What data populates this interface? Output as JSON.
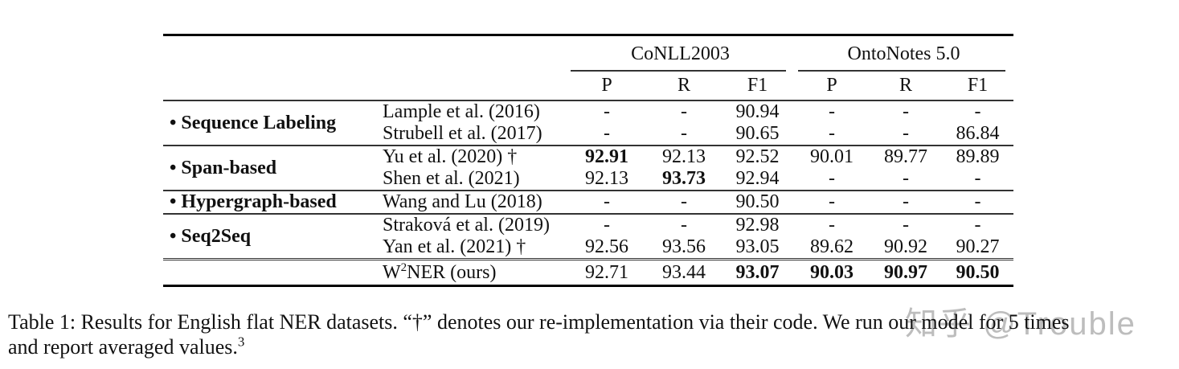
{
  "table": {
    "bullet": "•",
    "col_groups": [
      {
        "label": "CoNLL2003"
      },
      {
        "label": "OntoNotes 5.0"
      }
    ],
    "metric_headers": [
      "P",
      "R",
      "F1"
    ],
    "groups": [
      {
        "category": "Sequence Labeling",
        "rows": [
          {
            "method": "Lample et al. (2016)",
            "values": [
              "-",
              "-",
              "90.94",
              "-",
              "-",
              "-"
            ],
            "bold": []
          },
          {
            "method": "Strubell et al. (2017)",
            "values": [
              "-",
              "-",
              "90.65",
              "-",
              "-",
              "86.84"
            ],
            "bold": []
          }
        ]
      },
      {
        "category": "Span-based",
        "rows": [
          {
            "method": "Yu et al. (2020) †",
            "values": [
              "92.91",
              "92.13",
              "92.52",
              "90.01",
              "89.77",
              "89.89"
            ],
            "bold": [
              0
            ]
          },
          {
            "method": "Shen et al. (2021)",
            "values": [
              "92.13",
              "93.73",
              "92.94",
              "-",
              "-",
              "-"
            ],
            "bold": [
              1
            ]
          }
        ]
      },
      {
        "category": "Hypergraph-based",
        "rows": [
          {
            "method": "Wang and Lu (2018)",
            "values": [
              "-",
              "-",
              "90.50",
              "-",
              "-",
              "-"
            ],
            "bold": []
          }
        ]
      },
      {
        "category": "Seq2Seq",
        "rows": [
          {
            "method": "Straková et al. (2019)",
            "values": [
              "-",
              "-",
              "92.98",
              "-",
              "-",
              "-"
            ],
            "bold": []
          },
          {
            "method": "Yan et al. (2021) †",
            "values": [
              "92.56",
              "93.56",
              "93.05",
              "89.62",
              "90.92",
              "90.27"
            ],
            "bold": []
          }
        ]
      }
    ],
    "final_row": {
      "method_prefix": "W",
      "method_sup": "2",
      "method_suffix": "NER (ours)",
      "values": [
        "92.71",
        "93.44",
        "93.07",
        "90.03",
        "90.97",
        "90.50"
      ],
      "bold": [
        2,
        3,
        4,
        5
      ]
    }
  },
  "caption": {
    "line1": "Table 1: Results for English flat NER datasets. “†” denotes our re-implementation via their code. We run our model for 5 times",
    "line2": "and report averaged values.",
    "footnote_sup": "3"
  },
  "watermark": {
    "text": "知乎 @Trouble",
    "color": "#bdbdbd"
  }
}
